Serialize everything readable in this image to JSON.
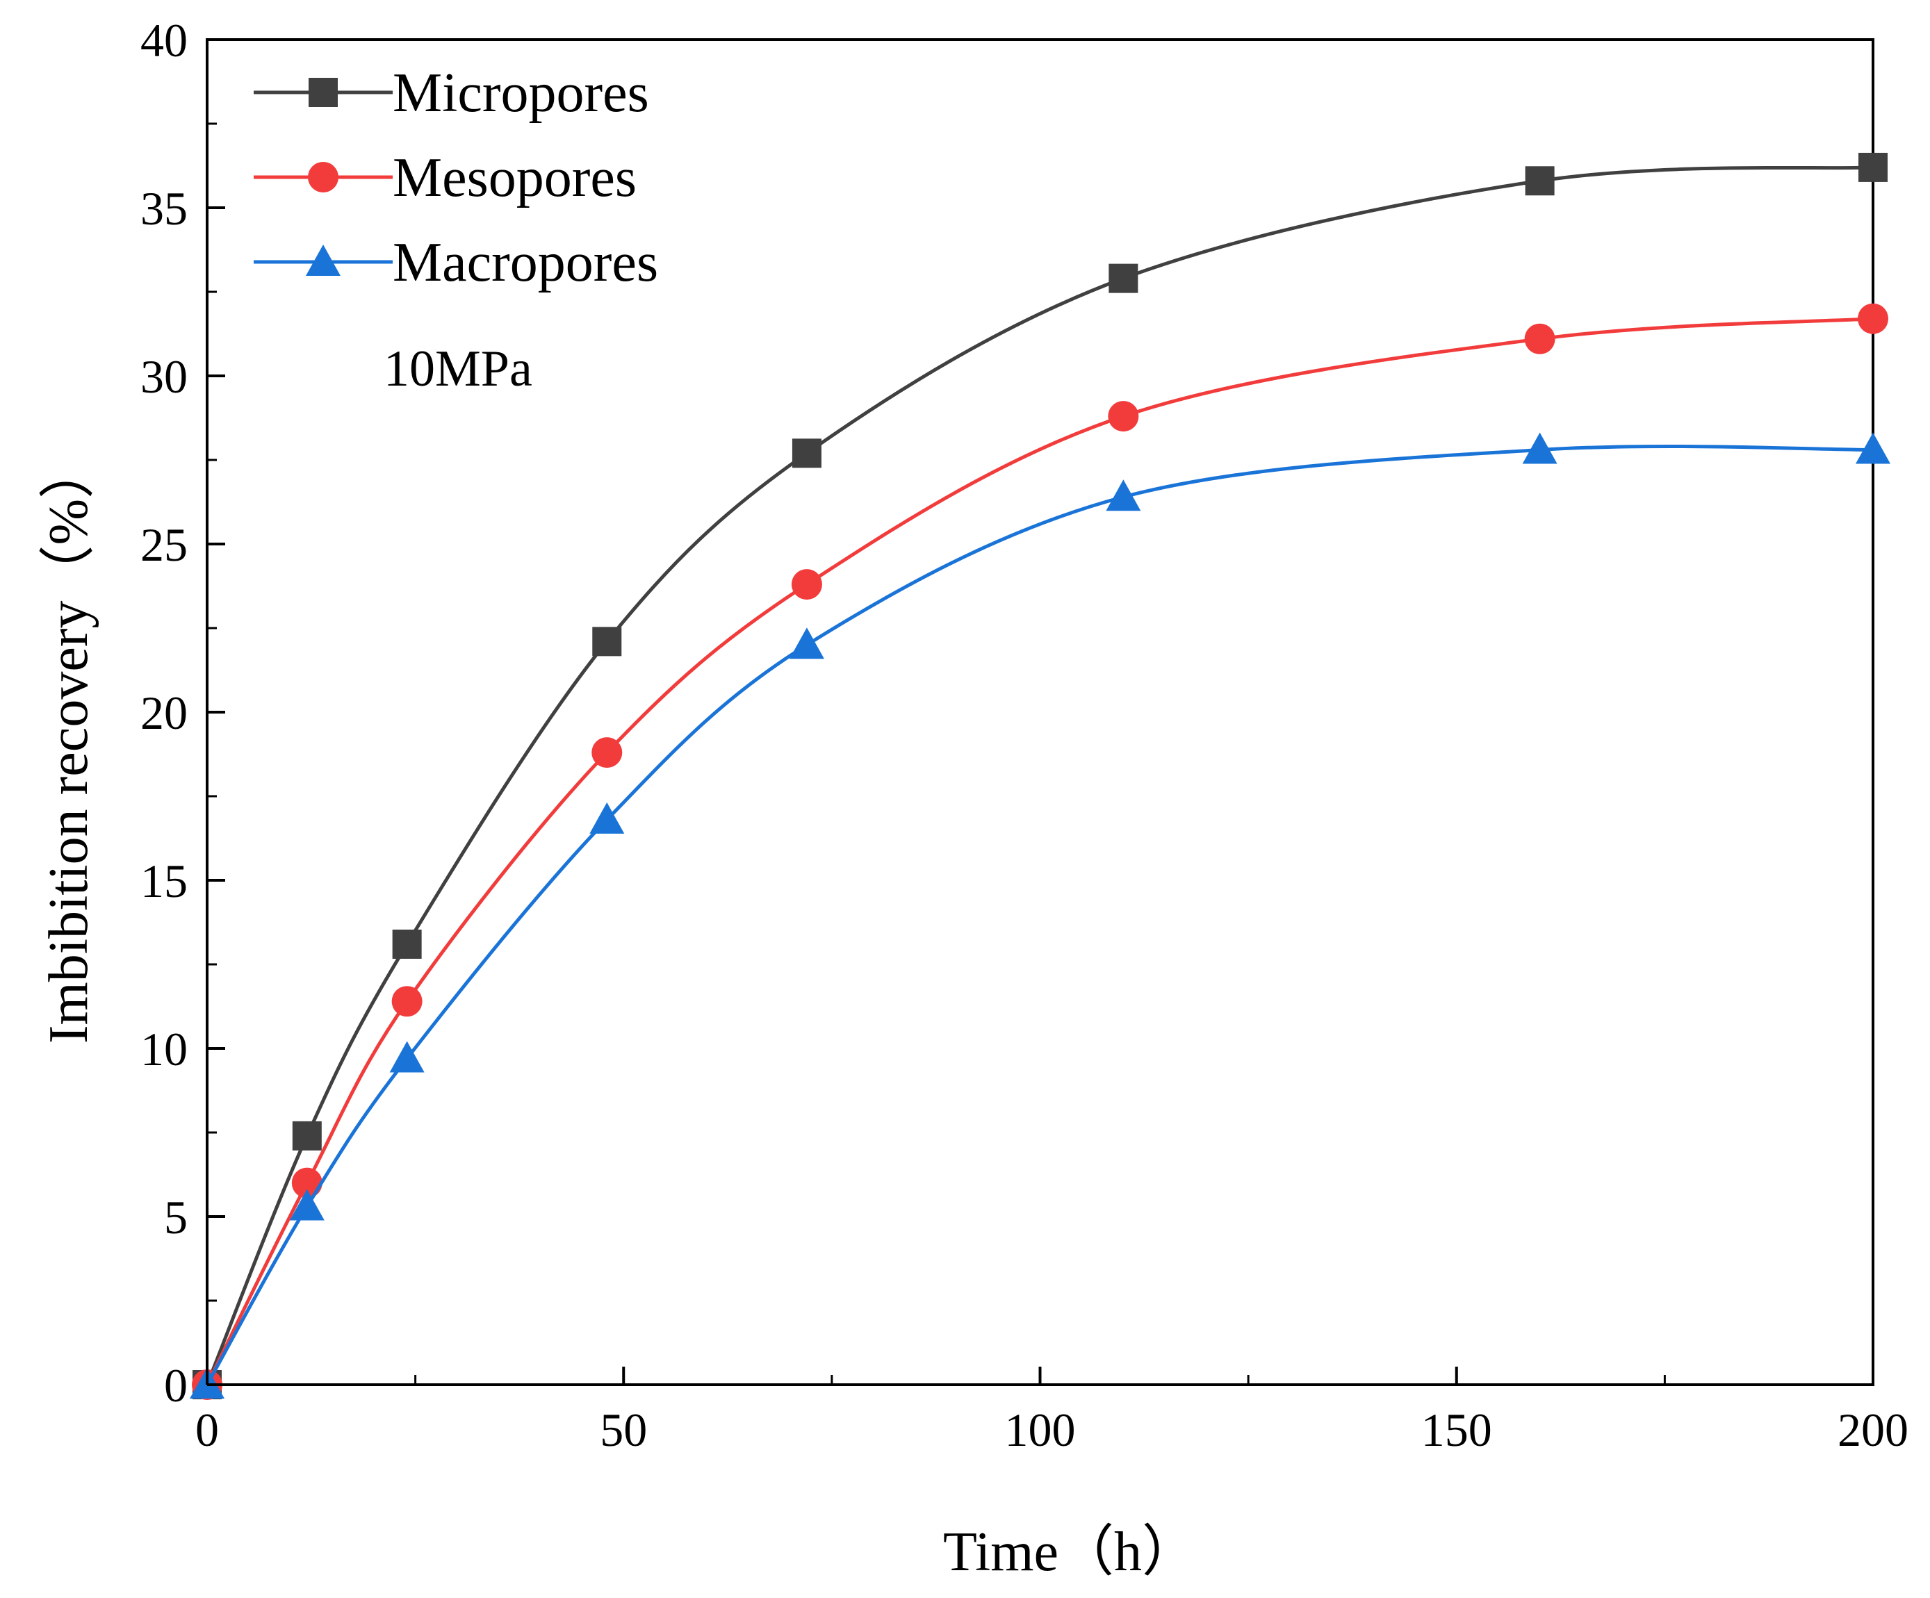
{
  "chart_data": {
    "type": "line",
    "title": "",
    "xlabel": "Time（h）",
    "ylabel": "Imbibition recovery（%）",
    "xlim": [
      0,
      200
    ],
    "ylim": [
      0,
      40
    ],
    "xticks": [
      0,
      50,
      100,
      150,
      200
    ],
    "yticks": [
      0,
      5,
      10,
      15,
      20,
      25,
      30,
      35,
      40
    ],
    "grid": false,
    "legend_position": "top-left",
    "annotation": "10MPa",
    "x": [
      0,
      12,
      24,
      48,
      72,
      110,
      160,
      200
    ],
    "series": [
      {
        "name": "Micropores",
        "color": "#404040",
        "marker": "square",
        "values": [
          0,
          7.4,
          13.1,
          22.1,
          27.7,
          32.9,
          35.8,
          36.2
        ]
      },
      {
        "name": "Mesopores",
        "color": "#f23c3c",
        "marker": "circle",
        "values": [
          0,
          6.0,
          11.4,
          18.8,
          23.8,
          28.8,
          31.1,
          31.7
        ]
      },
      {
        "name": "Macropores",
        "color": "#1a74d8",
        "marker": "triangle",
        "values": [
          0,
          5.3,
          9.7,
          16.8,
          22.0,
          26.4,
          27.8,
          27.8
        ]
      }
    ]
  }
}
